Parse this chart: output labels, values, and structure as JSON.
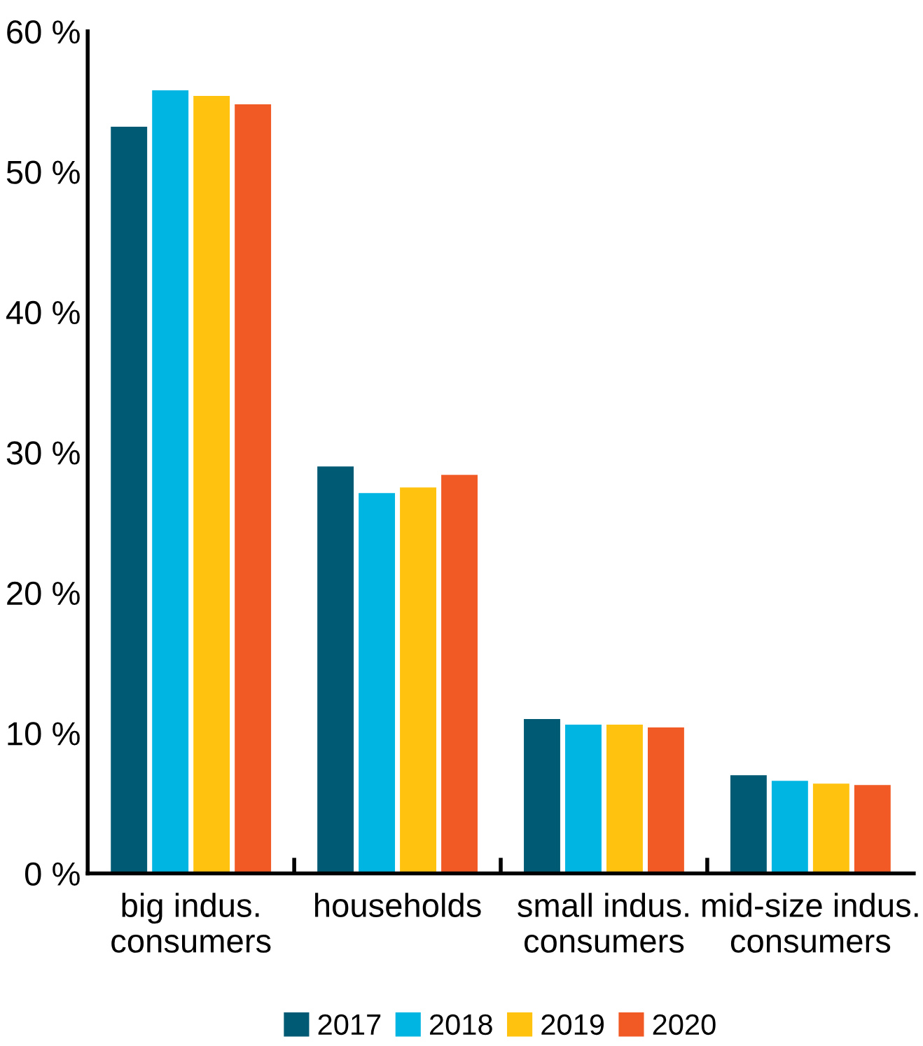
{
  "chart_data": {
    "type": "bar",
    "categories": [
      "big indus.\nconsumers",
      "households",
      "small indus.\nconsumers",
      "mid-size indus.\nconsumers"
    ],
    "series": [
      {
        "name": "2017",
        "color": "#005a74",
        "values": [
          53.2,
          29.0,
          11.0,
          7.0
        ]
      },
      {
        "name": "2018",
        "color": "#00b5e2",
        "values": [
          55.8,
          27.1,
          10.6,
          6.6
        ]
      },
      {
        "name": "2019",
        "color": "#ffc20e",
        "values": [
          55.4,
          27.5,
          10.6,
          6.4
        ]
      },
      {
        "name": "2020",
        "color": "#f15a24",
        "values": [
          54.8,
          28.4,
          10.4,
          6.3
        ]
      }
    ],
    "ylim": [
      0,
      60
    ],
    "yticks": [
      {
        "value": 0,
        "label": "0 %"
      },
      {
        "value": 10,
        "label": "10 %"
      },
      {
        "value": 20,
        "label": "20 %"
      },
      {
        "value": 30,
        "label": "30 %"
      },
      {
        "value": 40,
        "label": "40 %"
      },
      {
        "value": 50,
        "label": "50 %"
      },
      {
        "value": 60,
        "label": "60 %"
      }
    ],
    "grid": false,
    "legend": "bottom"
  }
}
